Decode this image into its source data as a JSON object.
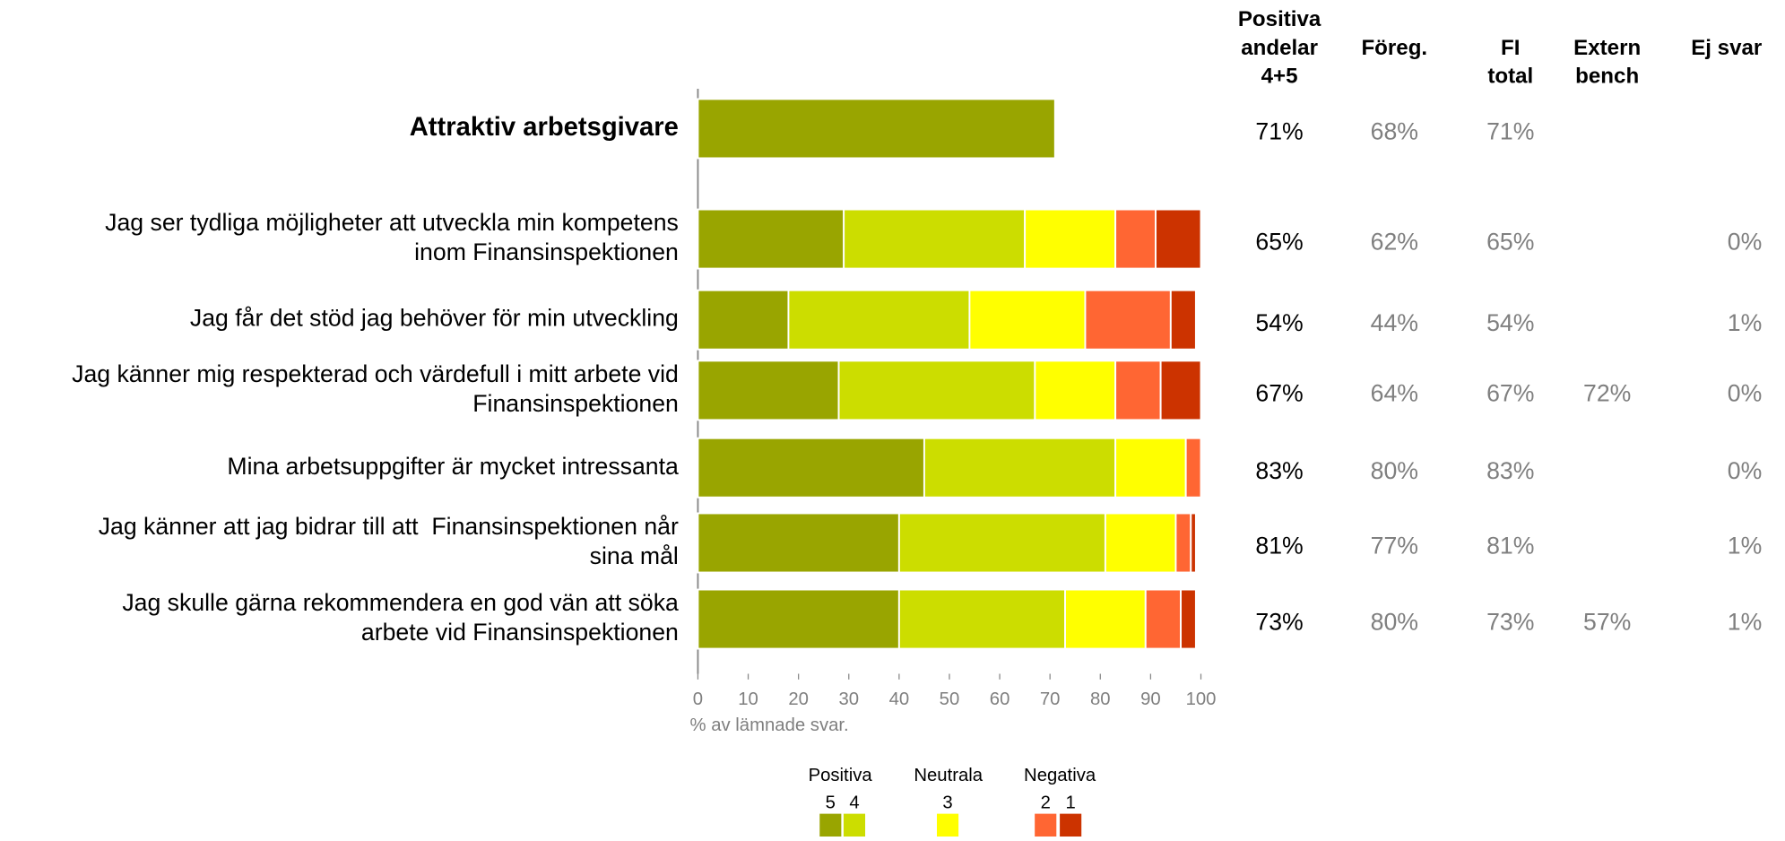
{
  "chart_data": {
    "type": "stacked-bar",
    "categories": [
      [
        "Attraktiv arbetsgivare"
      ],
      [
        "Jag ser tydliga möjligheter att utveckla min kompetens",
        "inom Finansinspektionen"
      ],
      [
        "Jag får det stöd jag behöver för min utveckling"
      ],
      [
        "Jag känner mig respekterad och värdefull i mitt arbete vid",
        "Finansinspektionen"
      ],
      [
        "Mina arbetsuppgifter är mycket intressanta"
      ],
      [
        "Jag känner att jag bidrar till att  Finansinspektionen når",
        "sina mål"
      ],
      [
        "Jag skulle gärna rekommendera en god vän att söka",
        "arbete vid Finansinspektionen"
      ]
    ],
    "series": [
      {
        "name": "5",
        "color": "#99a500",
        "values": [
          71,
          29,
          18,
          28,
          45,
          40,
          40
        ]
      },
      {
        "name": "4",
        "color": "#ccdd00",
        "values": [
          null,
          36,
          36,
          39,
          38,
          41,
          33
        ]
      },
      {
        "name": "3",
        "color": "#ffff00",
        "values": [
          null,
          18,
          23,
          16,
          14,
          14,
          16
        ]
      },
      {
        "name": "2",
        "color": "#ff6633",
        "values": [
          null,
          8,
          17,
          9,
          3,
          3,
          7
        ]
      },
      {
        "name": "1",
        "color": "#cc3300",
        "values": [
          null,
          9,
          5,
          8,
          0,
          1,
          3
        ]
      }
    ],
    "xlim": [
      0,
      100
    ],
    "xticks": [
      0,
      10,
      20,
      30,
      40,
      50,
      60,
      70,
      80,
      90,
      100
    ],
    "xlabel": "% av lämnade svar.",
    "legend_groups": [
      "Positiva",
      "Neutrala",
      "Negativa"
    ]
  },
  "table": {
    "headers": [
      [
        "Positiva",
        "andelar",
        "4+5"
      ],
      [
        "Föreg."
      ],
      [
        "FI",
        "total"
      ],
      [
        "Extern",
        "bench"
      ],
      [
        "Ej svar"
      ]
    ],
    "rows": [
      [
        "71%",
        "68%",
        "71%",
        null,
        null
      ],
      [
        "65%",
        "62%",
        "65%",
        null,
        "0%"
      ],
      [
        "54%",
        "44%",
        "54%",
        null,
        "1%"
      ],
      [
        "67%",
        "64%",
        "67%",
        "72%",
        "0%"
      ],
      [
        "83%",
        "80%",
        "83%",
        null,
        "0%"
      ],
      [
        "81%",
        "77%",
        "81%",
        null,
        "1%"
      ],
      [
        "73%",
        "80%",
        "73%",
        "57%",
        "1%"
      ]
    ]
  }
}
